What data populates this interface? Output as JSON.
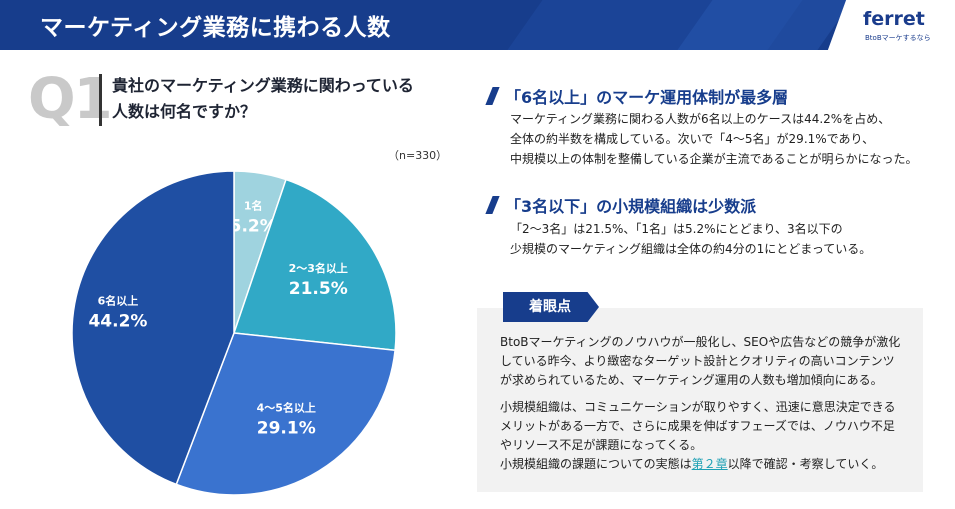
{
  "header": {
    "title": "マーケティング業務に携わる人数",
    "logo_text": "ferret",
    "logo_tagline": "BtoBマーケするなら"
  },
  "question": {
    "label": "Q1",
    "text_line1": "貴社のマーケティング業務に関わっている",
    "text_line2": "人数は何名ですか？",
    "sample": "（n=330）"
  },
  "chart_data": {
    "type": "pie",
    "categories": [
      "1名",
      "2〜3名以上",
      "4〜5名以上",
      "6名以上"
    ],
    "values": [
      5.2,
      21.5,
      29.1,
      44.2
    ],
    "value_labels": [
      "5.2%",
      "21.5%",
      "29.1%",
      "44.2%"
    ],
    "colors": [
      "#9fd3df",
      "#31a9c6",
      "#3a73cf",
      "#1f4fa3"
    ],
    "start_angle_deg": 0,
    "direction": "clockwise"
  },
  "findings": [
    {
      "heading": "「6名以上」のマーケ運用体制が最多層",
      "lines": [
        "マーケティング業務に関わる人数が6名以上のケースは44.2%を占め、",
        "全体の約半数を構成している。次いで「4〜5名」が29.1%であり、",
        "中規模以上の体制を整備している企業が主流であることが明らかになった。"
      ]
    },
    {
      "heading": "「3名以下」の小規模組織は少数派",
      "lines": [
        "「2〜3名」は21.5%、「1名」は5.2%にとどまり、3名以下の",
        "少規模のマーケティング組織は全体の約4分の1にとどまっている。"
      ]
    }
  ],
  "note": {
    "tag": "着眼点",
    "para1": [
      "BtoBマーケティングのノウハウが一般化し、SEOや広告などの競争が激化",
      "している昨今、より緻密なターゲット設計とクオリティの高いコンテンツ",
      "が求められているため、マーケティング運用の人数も増加傾向にある。"
    ],
    "para2": [
      "小規模組織は、コミュニケーションが取りやすく、迅速に意思決定できる",
      "メリットがある一方で、さらに成果を伸ばすフェーズでは、ノウハウ不足",
      "やリソース不足が課題になってくる。"
    ],
    "last_prefix": "小規模組織の課題についての実態は",
    "last_link": "第２章",
    "last_suffix": "以降で確認・考察していく。"
  }
}
